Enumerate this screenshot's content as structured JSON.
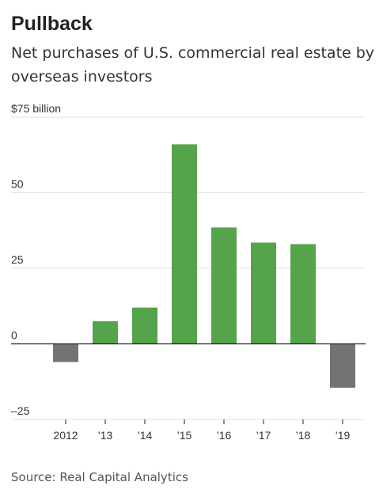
{
  "chart_data": {
    "type": "bar",
    "title": "Pullback",
    "subtitle": "Net purchases of U.S. commercial real estate by overseas investors",
    "unit_label": "$75 billion",
    "categories": [
      "2012",
      "’13",
      "’14",
      "’15",
      "’16",
      "’17",
      "’18",
      "’19"
    ],
    "values": [
      -6,
      7.5,
      12,
      66,
      38.5,
      33.5,
      33,
      -14.5
    ],
    "y_ticks": [
      {
        "value": 75,
        "label": "$75 billion"
      },
      {
        "value": 50,
        "label": "50"
      },
      {
        "value": 25,
        "label": "25"
      },
      {
        "value": 0,
        "label": "0"
      },
      {
        "value": -25,
        "label": "–25"
      }
    ],
    "ylim": [
      -25,
      75
    ],
    "grid": true,
    "colors": {
      "positive": "#55a34a",
      "negative": "#737373",
      "gridline": "#e2e2e2",
      "zero_line": "#222222"
    },
    "source": "Source: Real Capital Analytics"
  }
}
